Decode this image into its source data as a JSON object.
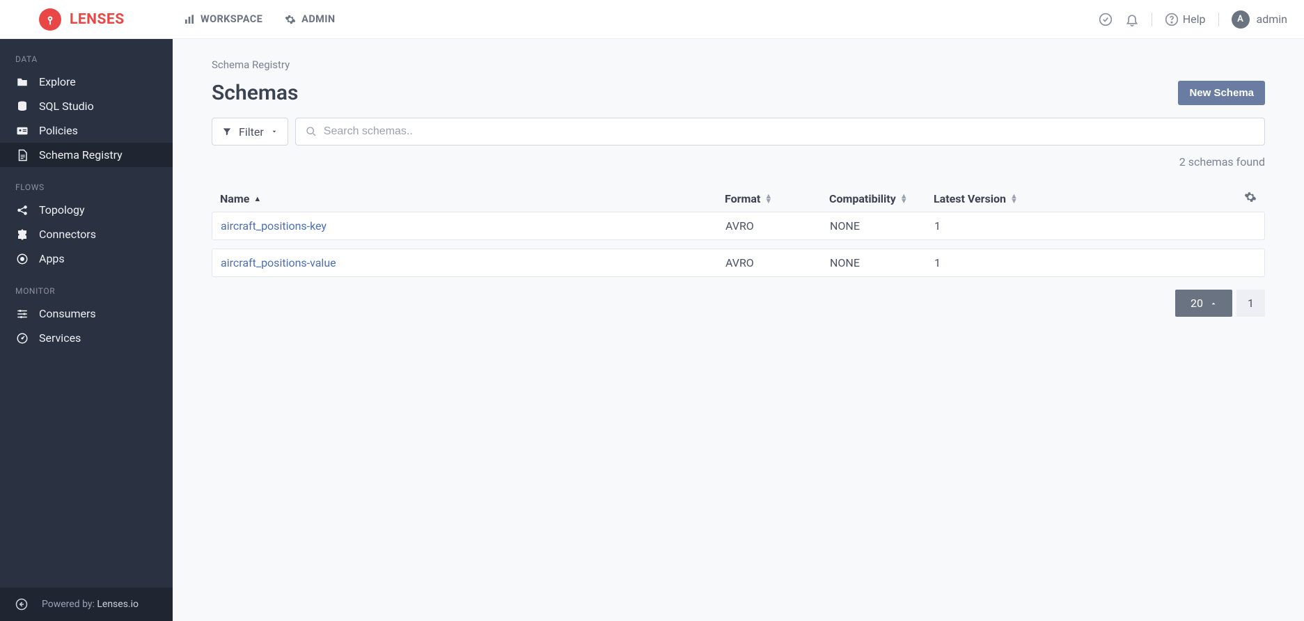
{
  "brand": {
    "name": "LENSES"
  },
  "topnav": {
    "workspace": "WORKSPACE",
    "admin": "ADMIN"
  },
  "topbar": {
    "help": "Help",
    "user_initial": "A",
    "user_name": "admin"
  },
  "sidebar": {
    "sections": [
      {
        "title": "DATA",
        "items": [
          {
            "icon": "folder",
            "label": "Explore",
            "name": "sidebar-item-explore",
            "active": false
          },
          {
            "icon": "database",
            "label": "SQL Studio",
            "name": "sidebar-item-sql-studio",
            "active": false
          },
          {
            "icon": "idcard",
            "label": "Policies",
            "name": "sidebar-item-policies",
            "active": false
          },
          {
            "icon": "file",
            "label": "Schema Registry",
            "name": "sidebar-item-schema-registry",
            "active": true
          }
        ]
      },
      {
        "title": "FLOWS",
        "items": [
          {
            "icon": "share",
            "label": "Topology",
            "name": "sidebar-item-topology",
            "active": false
          },
          {
            "icon": "puzzle",
            "label": "Connectors",
            "name": "sidebar-item-connectors",
            "active": false
          },
          {
            "icon": "target",
            "label": "Apps",
            "name": "sidebar-item-apps",
            "active": false
          }
        ]
      },
      {
        "title": "MONITOR",
        "items": [
          {
            "icon": "sliders",
            "label": "Consumers",
            "name": "sidebar-item-consumers",
            "active": false
          },
          {
            "icon": "gauge",
            "label": "Services",
            "name": "sidebar-item-services",
            "active": false
          }
        ]
      }
    ],
    "footer": {
      "prefix": "Powered by: ",
      "link": "Lenses.io"
    }
  },
  "main": {
    "breadcrumb": "Schema Registry",
    "title": "Schemas",
    "new_button": "New Schema",
    "filter_label": "Filter",
    "search_placeholder": "Search schemas..",
    "count_text": "2 schemas found",
    "columns": {
      "name": "Name",
      "format": "Format",
      "compat": "Compatibility",
      "version": "Latest Version"
    },
    "rows": [
      {
        "name": "aircraft_positions-key",
        "format": "AVRO",
        "compat": "NONE",
        "version": "1"
      },
      {
        "name": "aircraft_positions-value",
        "format": "AVRO",
        "compat": "NONE",
        "version": "1"
      }
    ],
    "pagination": {
      "page_size": "20",
      "current_page": "1"
    }
  },
  "colors": {
    "brand_red": "#e94646",
    "sidebar_bg": "#2a3242",
    "sidebar_active": "#1f2632",
    "primary_btn": "#6a7ca1",
    "link": "#4a6fb3",
    "muted": "#7a8294"
  }
}
